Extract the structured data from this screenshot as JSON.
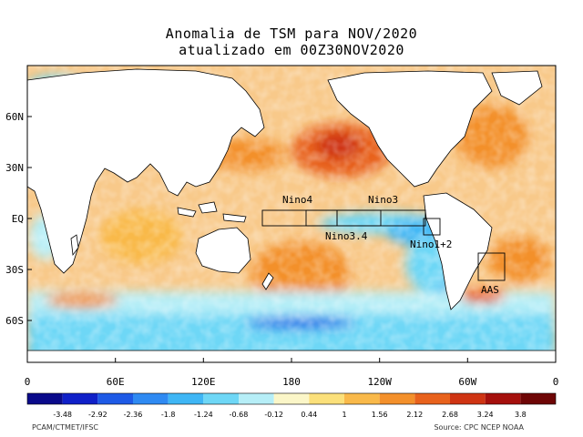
{
  "title_line1": "Anomalia de TSM para NOV/2020",
  "title_line2": "atualizado em 00Z30NOV2020",
  "lat_labels": [
    "60N",
    "30N",
    "EQ",
    "30S",
    "60S"
  ],
  "lon_labels": [
    "0",
    "60E",
    "120E",
    "180",
    "120W",
    "60W",
    "0"
  ],
  "regions": {
    "nino4": "Nino4",
    "nino3": "Nino3",
    "nino34": "Nino3.4",
    "nino12": "Nino1+2",
    "aas": "AAS"
  },
  "colorbar": {
    "tick_labels": [
      "-3.48",
      "-2.92",
      "-2.36",
      "-1.8",
      "-1.24",
      "-0.68",
      "-0.12",
      "0.44",
      "1",
      "1.56",
      "2.12",
      "2.68",
      "3.24",
      "3.8"
    ],
    "colors": [
      "#0a0a8a",
      "#1020c8",
      "#1e5ae6",
      "#2f8af2",
      "#3fb6f5",
      "#6ed7f6",
      "#b6eef7",
      "#fbf6c8",
      "#fbe07a",
      "#f9b94a",
      "#f3902b",
      "#e8621c",
      "#cf3413",
      "#a5100c",
      "#6e0606"
    ]
  },
  "footer_left": "PCAM/CTMET/IFSC",
  "footer_right": "Source: CPC NCEP NOAA"
}
